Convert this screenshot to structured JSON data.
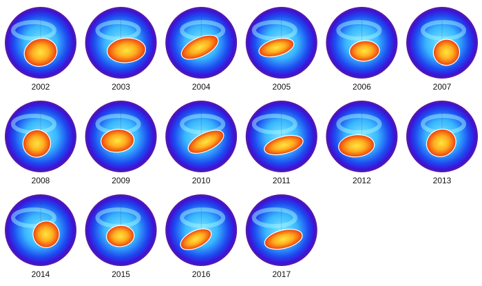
{
  "panels": [
    {
      "label": "2002"
    },
    {
      "label": "2003"
    },
    {
      "label": "2004"
    },
    {
      "label": "2005"
    },
    {
      "label": "2006"
    },
    {
      "label": "2007"
    },
    {
      "label": "2008"
    },
    {
      "label": "2009"
    },
    {
      "label": "2010"
    },
    {
      "label": "2011"
    },
    {
      "label": "2012"
    },
    {
      "label": "2013"
    },
    {
      "label": "2014"
    },
    {
      "label": "2015"
    },
    {
      "label": "2016"
    },
    {
      "label": "2017"
    }
  ]
}
